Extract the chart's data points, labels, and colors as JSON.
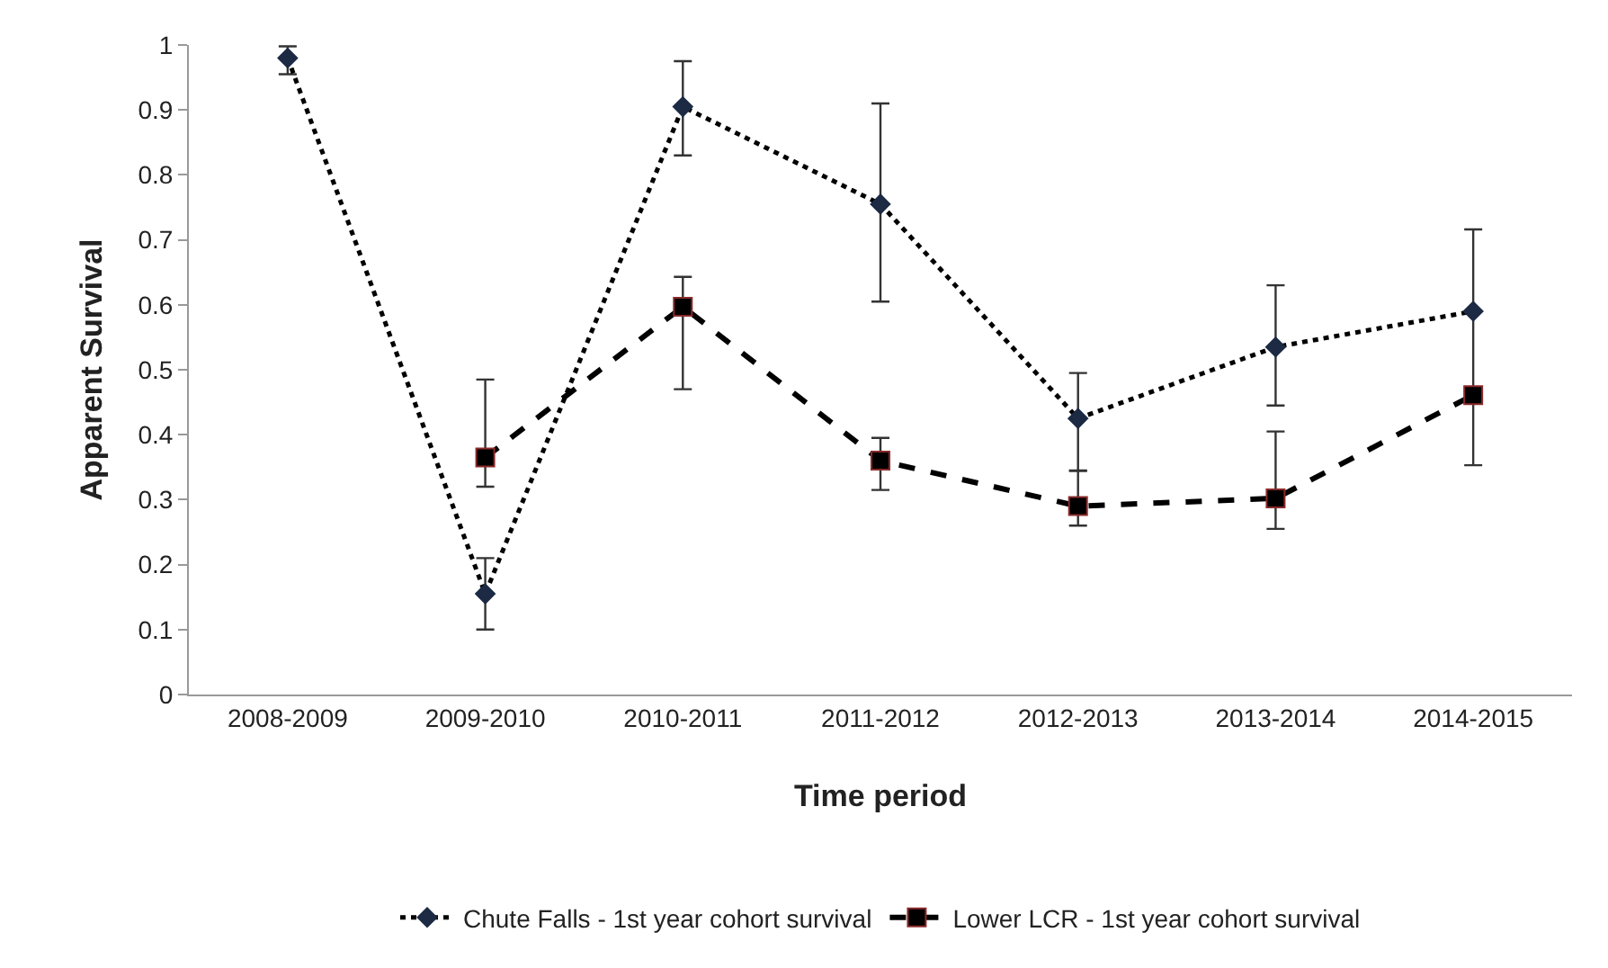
{
  "chart_data": {
    "type": "line",
    "xlabel": "Time period",
    "ylabel": "Apparent Survival",
    "categories": [
      "2008-2009",
      "2009-2010",
      "2010-2011",
      "2011-2012",
      "2012-2013",
      "2013-2014",
      "2014-2015"
    ],
    "ylim": [
      0,
      1
    ],
    "yticks": [
      0,
      0.1,
      0.2,
      0.3,
      0.4,
      0.5,
      0.6,
      0.7,
      0.8,
      0.9,
      1
    ],
    "grid": false,
    "legend": "bottom",
    "series": [
      {
        "name": "Chute Falls - 1st year cohort survival",
        "color": "#1c2a44",
        "marker": "diamond",
        "line_style": "dotted",
        "values": [
          0.98,
          0.155,
          0.905,
          0.755,
          0.425,
          0.535,
          0.59
        ],
        "errors": [
          [
            0.955,
            0.998
          ],
          [
            0.1,
            0.21
          ],
          [
            0.83,
            0.975
          ],
          [
            0.605,
            0.91
          ],
          [
            0.345,
            0.495
          ],
          [
            0.445,
            0.63
          ],
          [
            0.353,
            0.716
          ]
        ]
      },
      {
        "name": "Lower LCR - 1st year cohort survival",
        "color": "#000000",
        "marker": "square",
        "line_style": "dashed",
        "values": [
          null,
          0.365,
          0.597,
          0.36,
          0.29,
          0.302,
          0.461
        ],
        "errors": [
          null,
          [
            0.32,
            0.485
          ],
          [
            0.47,
            0.643
          ],
          [
            0.315,
            0.395
          ],
          [
            0.26,
            0.344
          ],
          [
            0.255,
            0.405
          ],
          null
        ]
      }
    ]
  }
}
